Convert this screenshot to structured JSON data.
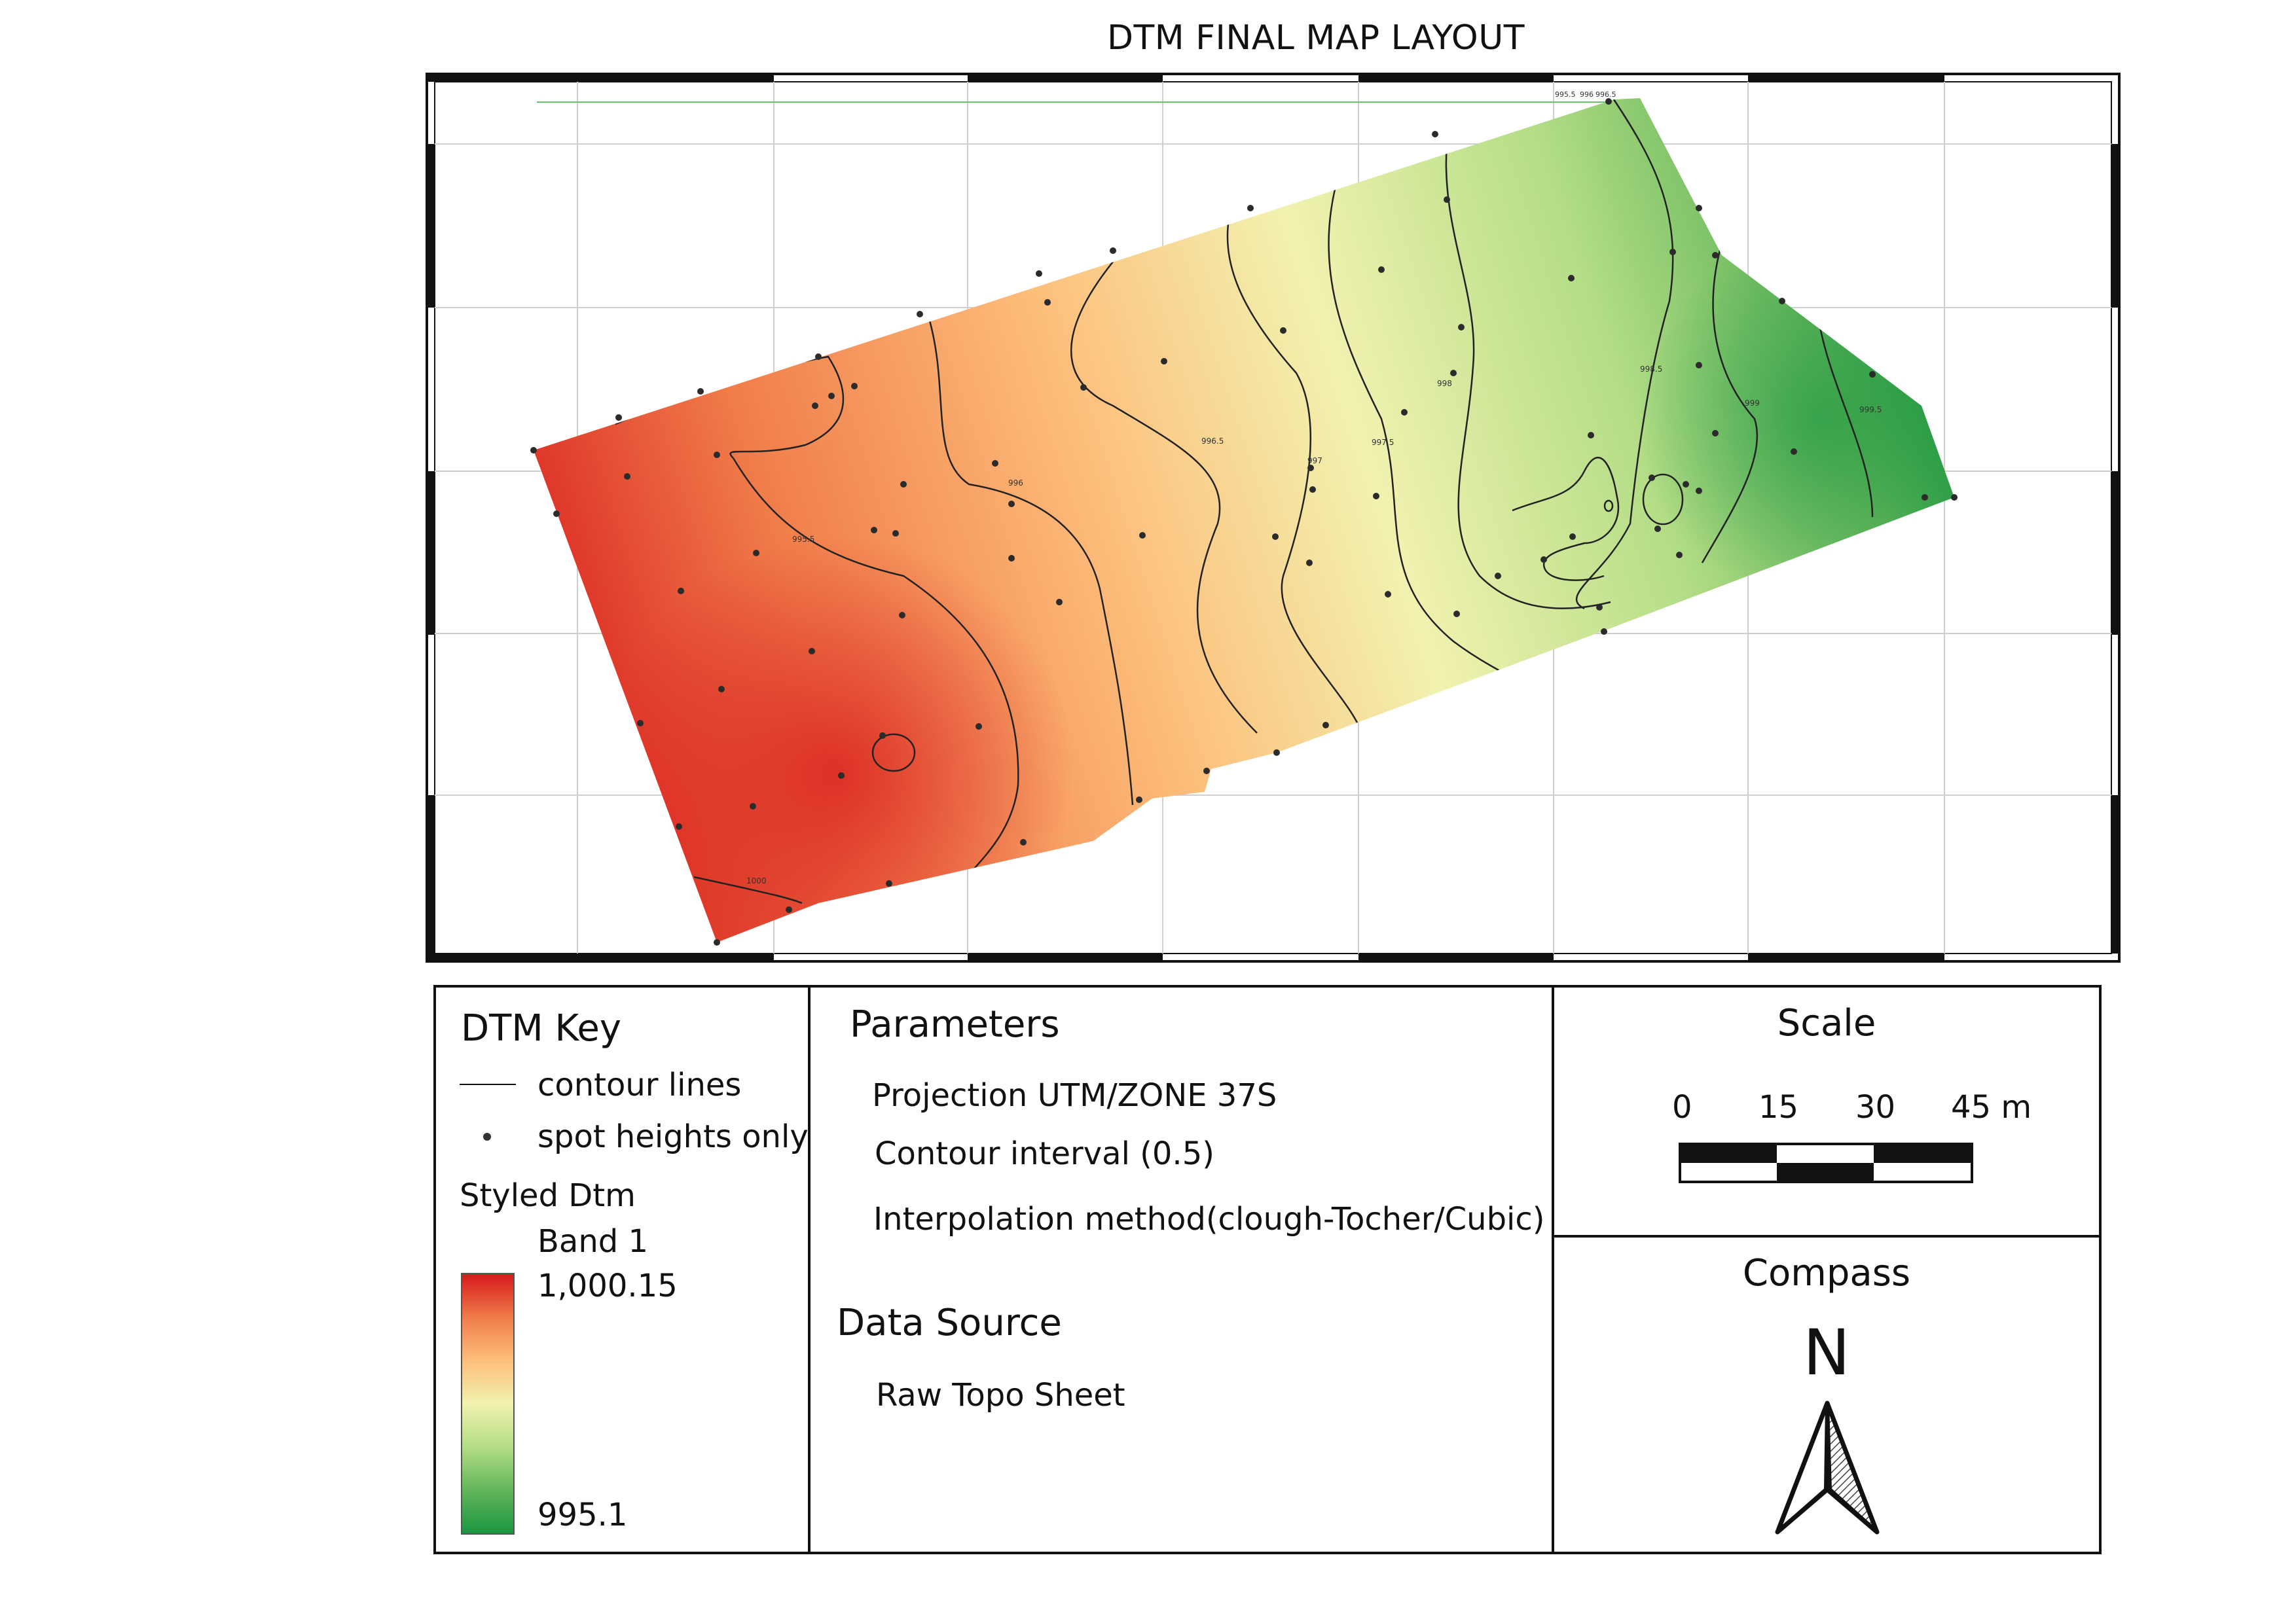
{
  "title": "DTM FINAL MAP LAYOUT",
  "map": {
    "contour_labels": [
      "995.5",
      "996",
      "996.5",
      "997",
      "997.5",
      "998",
      "998.5",
      "999",
      "999.5",
      "1000"
    ]
  },
  "legend": {
    "title": "DTM Key",
    "contour_label": "contour lines",
    "spot_label": "spot heights only",
    "styled_label": "Styled Dtm",
    "band_label": "Band 1",
    "max_value": "1,000.15",
    "min_value": "995.1",
    "ramp_colors": [
      "#d7191c",
      "#f07c4a",
      "#fdbe7b",
      "#f2f2b0",
      "#b3dd86",
      "#63b55a",
      "#1a9641"
    ]
  },
  "parameters": {
    "title": "Parameters",
    "projection": "Projection UTM/ZONE 37S",
    "contour_interval": "Contour interval  (0.5)",
    "interpolation": "Interpolation method(clough-Tocher/Cubic)",
    "source_title": "Data Source",
    "source": "Raw Topo Sheet"
  },
  "scale": {
    "title": "Scale",
    "ticks": [
      "0",
      "15",
      "30",
      "45 m"
    ]
  },
  "compass": {
    "title": "Compass",
    "north": "N"
  }
}
